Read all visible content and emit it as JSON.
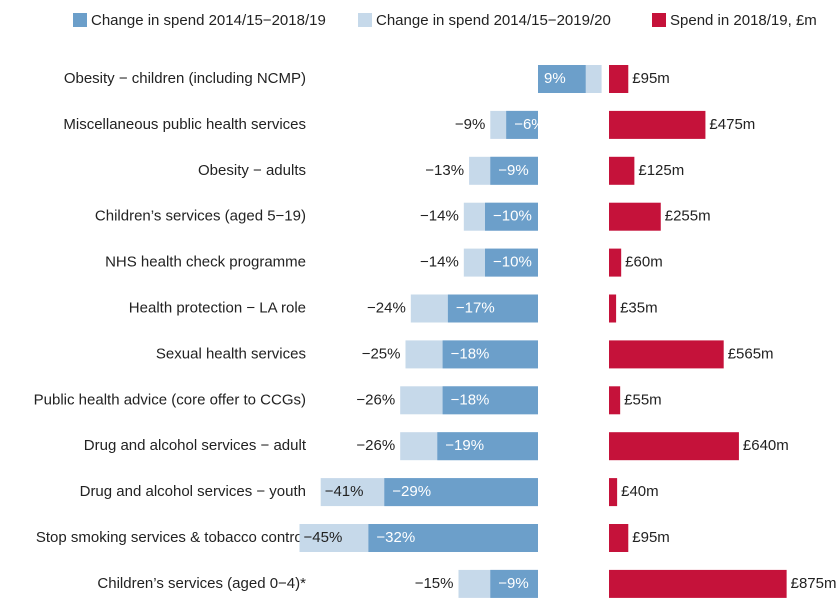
{
  "chart_data": {
    "type": "diverging-bar",
    "categories": [
      "Obesity − children (including NCMP)",
      "Miscellaneous public health services",
      "Obesity − adults",
      "Children’s services (aged 5−19)",
      "NHS health check programme",
      "Health protection − LA role",
      "Sexual health services",
      "Public health advice (core offer to CCGs)",
      "Drug and alcohol services − adult",
      "Drug and alcohol services − youth",
      "Stop smoking services & tobacco control",
      "Children’s services (aged 0−4)*"
    ],
    "series": [
      {
        "name": "Change in spend 2014/15−2019/20",
        "color": "#c6d9ea",
        "values": [
          12,
          -9,
          -13,
          -14,
          -14,
          -24,
          -25,
          -26,
          -26,
          -41,
          -45,
          -15
        ],
        "value_labels": [
          null,
          "−9%",
          "−13%",
          "−14%",
          "−14%",
          "−24%",
          "−25%",
          "−26%",
          "−26%",
          "−41%",
          "−45%",
          "−15%"
        ]
      },
      {
        "name": "Change in spend 2014/15−2018/19",
        "color": "#6c9fca",
        "values": [
          9,
          -6,
          -9,
          -10,
          -10,
          -17,
          -18,
          -18,
          -19,
          -29,
          -32,
          -9
        ],
        "value_labels": [
          "9%",
          "−6%",
          "−9%",
          "−10%",
          "−10%",
          "−17%",
          "−18%",
          "−18%",
          "−19%",
          "−29%",
          "−32%",
          "−9%"
        ]
      },
      {
        "name": "Spend in 2018/19, £m",
        "color": "#c5123a",
        "axis": "y2",
        "values": [
          95,
          475,
          125,
          255,
          60,
          35,
          565,
          55,
          640,
          40,
          95,
          875
        ],
        "value_labels": [
          "£95m",
          "£475m",
          "£125m",
          "£255m",
          "£60m",
          "£35m",
          "£565m",
          "£55m",
          "£640m",
          "£40m",
          "£95m",
          "£875m"
        ]
      }
    ],
    "legend_order": [
      1,
      0,
      2
    ]
  }
}
